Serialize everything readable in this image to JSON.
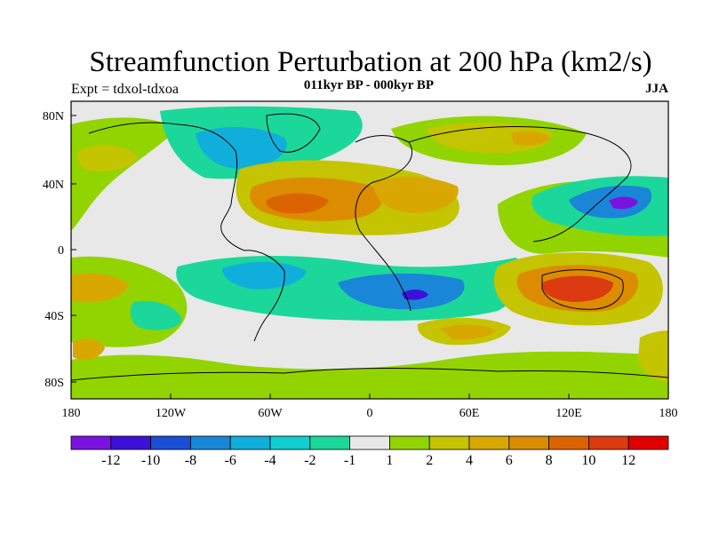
{
  "figure": {
    "title": "Streamfunction Perturbation at 200 hPa (km2/s)",
    "subtitle": "011kyr BP - 000kyr BP",
    "left_note": "Expt = tdxol-tdxoa",
    "right_note": "JJA"
  },
  "axes": {
    "y_ticks": [
      "80N",
      "40N",
      "0",
      "40S",
      "80S"
    ],
    "x_ticks": [
      "180",
      "120W",
      "60W",
      "0",
      "60E",
      "120E",
      "180"
    ]
  },
  "colorbar": {
    "colors": [
      "#7b13e0",
      "#3c12d8",
      "#1a4ed6",
      "#1a86d8",
      "#10aedb",
      "#12cdd1",
      "#1bd89a",
      "#e8e8e8",
      "#92d400",
      "#c4c400",
      "#d8a800",
      "#dc8c00",
      "#dc6400",
      "#dc3a10",
      "#e00000"
    ],
    "labels": [
      "-12",
      "-10",
      "-8",
      "-6",
      "-4",
      "-2",
      "-1",
      "1",
      "2",
      "4",
      "6",
      "8",
      "10",
      "12"
    ]
  },
  "chart_data": {
    "type": "contour-map",
    "variable": "Streamfunction Perturbation at 200 hPa",
    "units": "km2/s",
    "season": "JJA",
    "levels": [
      -12,
      -10,
      -8,
      -6,
      -4,
      -2,
      -1,
      1,
      2,
      4,
      6,
      8,
      10,
      12
    ],
    "lon_range": [
      -180,
      180
    ],
    "lat_range": [
      -90,
      90
    ],
    "features": [
      {
        "region": "subtropical North Atlantic (~40W, 25N)",
        "sign": "positive",
        "approx_max": 10
      },
      {
        "region": "North Africa / Mediterranean (~20E, 25N)",
        "sign": "positive",
        "approx_max": 8
      },
      {
        "region": "Australia / SE Indian Ocean (~130E, 25S)",
        "sign": "positive",
        "approx_max": 12
      },
      {
        "region": "southeast Pacific (~160W, 25S)",
        "sign": "positive",
        "approx_max": 6
      },
      {
        "region": "North Pacific (~170W, 45N)",
        "sign": "positive",
        "approx_max": 4
      },
      {
        "region": "Eurasia (~60E, 70N)",
        "sign": "positive",
        "approx_max": 4
      },
      {
        "region": "northwest Pacific / Japan (~155E, 28N)",
        "sign": "negative",
        "approx_min": -12
      },
      {
        "region": "South Atlantic / southern Africa (~25E, 30S)",
        "sign": "negative",
        "approx_min": -10
      },
      {
        "region": "Greenland / Arctic (~60W, 70N)",
        "sign": "negative",
        "approx_min": -6
      },
      {
        "region": "eastern Pacific / South America (~90W, 15S)",
        "sign": "negative",
        "approx_min": -6
      }
    ]
  }
}
